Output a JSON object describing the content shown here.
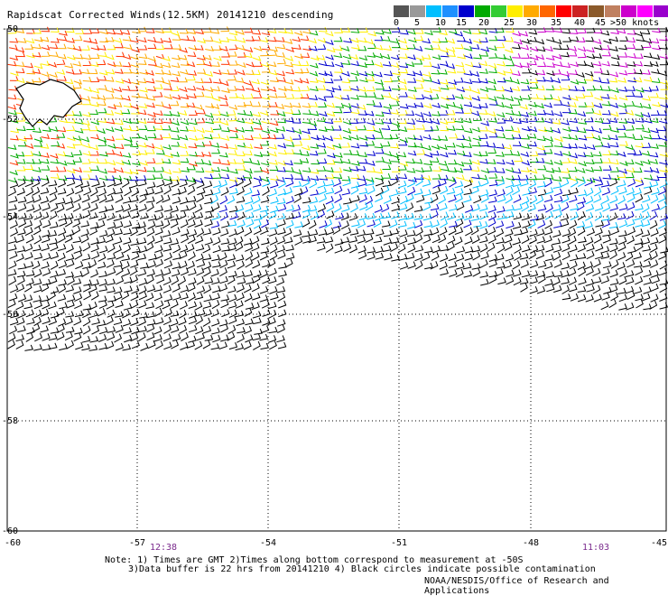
{
  "title": "Rapidscat Corrected Winds(12.5KM) 20141210 descending",
  "colorbar": {
    "colors": [
      "#555555",
      "#999999",
      "#00bfff",
      "#1e90ff",
      "#0000cd",
      "#00aa00",
      "#33cc33",
      "#ffee00",
      "#ffaa00",
      "#ff6600",
      "#ff0000",
      "#cc2222",
      "#8b5a2b",
      "#c08060",
      "#cc00cc",
      "#ff00ff",
      "#9900cc",
      "#dddddd"
    ],
    "labels": [
      "0",
      "5",
      "10",
      "15",
      "20",
      "25",
      "30",
      "35",
      "40",
      "45",
      ">50 knots"
    ]
  },
  "lat_labels": [
    "-50",
    "-52",
    "-54",
    "-56",
    "-58",
    "-60"
  ],
  "lon_labels": [
    "-60",
    "-57",
    "-54",
    "-51",
    "-48",
    "-45"
  ],
  "times": [
    "12:38",
    "11:03"
  ],
  "note_line1": "Note: 1) Times are GMT 2)Times along bottom correspond to measurement at -50S",
  "note_line2": "3)Data buffer is 22 hrs from 20141210 4) Black circles indicate possible contamination",
  "credit": "NOAA/NESDIS/Office of Research and Applications",
  "legend_units": "knots",
  "wind_colors": [
    "#000000",
    "#00bfff",
    "#0000cd",
    "#00aa00",
    "#ffee00",
    "#ffaa00",
    "#ff3300",
    "#cc00cc"
  ]
}
